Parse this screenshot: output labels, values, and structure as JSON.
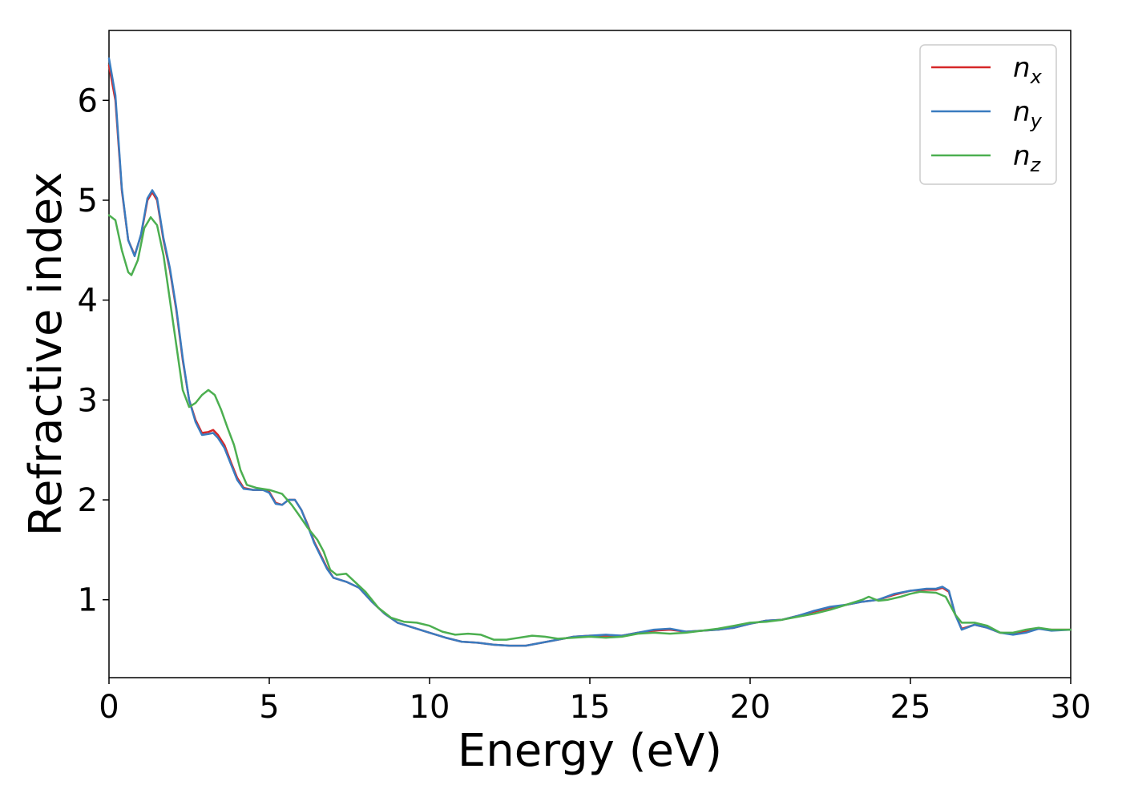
{
  "chart_data": {
    "type": "line",
    "title": "",
    "xlabel": "Energy (eV)",
    "ylabel": "Refractive index",
    "xlim": [
      0,
      30
    ],
    "ylim": [
      0.22,
      6.7
    ],
    "xticks": [
      0,
      5,
      10,
      15,
      20,
      25,
      30
    ],
    "xtick_labels": [
      "0",
      "5",
      "10",
      "15",
      "20",
      "25",
      "30"
    ],
    "yticks": [
      1,
      2,
      3,
      4,
      5,
      6
    ],
    "ytick_labels": [
      "1",
      "2",
      "3",
      "4",
      "5",
      "6"
    ],
    "grid": false,
    "legend_position": "top-right",
    "series": [
      {
        "name": "n",
        "subscript": "x",
        "color": "#d62728",
        "points": [
          [
            0,
            6.35
          ],
          [
            0.2,
            6.0
          ],
          [
            0.4,
            5.1
          ],
          [
            0.6,
            4.6
          ],
          [
            0.8,
            4.45
          ],
          [
            1.0,
            4.65
          ],
          [
            1.2,
            5.0
          ],
          [
            1.35,
            5.08
          ],
          [
            1.5,
            5.0
          ],
          [
            1.7,
            4.6
          ],
          [
            1.9,
            4.3
          ],
          [
            2.1,
            3.9
          ],
          [
            2.3,
            3.4
          ],
          [
            2.5,
            3.0
          ],
          [
            2.7,
            2.8
          ],
          [
            2.9,
            2.67
          ],
          [
            3.1,
            2.68
          ],
          [
            3.25,
            2.7
          ],
          [
            3.4,
            2.65
          ],
          [
            3.6,
            2.55
          ],
          [
            3.8,
            2.38
          ],
          [
            4.0,
            2.22
          ],
          [
            4.2,
            2.12
          ],
          [
            4.5,
            2.1
          ],
          [
            4.8,
            2.1
          ],
          [
            5.0,
            2.08
          ],
          [
            5.2,
            1.97
          ],
          [
            5.4,
            1.95
          ],
          [
            5.6,
            2.0
          ],
          [
            5.8,
            2.0
          ],
          [
            6.0,
            1.9
          ],
          [
            6.2,
            1.75
          ],
          [
            6.4,
            1.58
          ],
          [
            6.6,
            1.45
          ],
          [
            6.8,
            1.32
          ],
          [
            7.0,
            1.22
          ],
          [
            7.4,
            1.18
          ],
          [
            7.8,
            1.12
          ],
          [
            8.2,
            0.98
          ],
          [
            8.6,
            0.86
          ],
          [
            9.0,
            0.77
          ],
          [
            9.5,
            0.72
          ],
          [
            10.0,
            0.67
          ],
          [
            10.5,
            0.62
          ],
          [
            11.0,
            0.58
          ],
          [
            11.5,
            0.57
          ],
          [
            12.0,
            0.55
          ],
          [
            12.5,
            0.54
          ],
          [
            13.0,
            0.54
          ],
          [
            13.5,
            0.57
          ],
          [
            14.0,
            0.6
          ],
          [
            14.5,
            0.63
          ],
          [
            15.0,
            0.64
          ],
          [
            15.5,
            0.64
          ],
          [
            16.0,
            0.64
          ],
          [
            16.5,
            0.67
          ],
          [
            17.0,
            0.69
          ],
          [
            17.5,
            0.7
          ],
          [
            18.0,
            0.68
          ],
          [
            18.5,
            0.69
          ],
          [
            19.0,
            0.7
          ],
          [
            19.5,
            0.72
          ],
          [
            20.0,
            0.76
          ],
          [
            20.5,
            0.79
          ],
          [
            21.0,
            0.8
          ],
          [
            21.5,
            0.84
          ],
          [
            22.0,
            0.88
          ],
          [
            22.5,
            0.92
          ],
          [
            23.0,
            0.95
          ],
          [
            23.5,
            0.98
          ],
          [
            24.0,
            1.0
          ],
          [
            24.5,
            1.05
          ],
          [
            25.0,
            1.09
          ],
          [
            25.5,
            1.1
          ],
          [
            25.8,
            1.1
          ],
          [
            26.0,
            1.12
          ],
          [
            26.2,
            1.08
          ],
          [
            26.4,
            0.85
          ],
          [
            26.6,
            0.71
          ],
          [
            27.0,
            0.75
          ],
          [
            27.4,
            0.72
          ],
          [
            27.8,
            0.67
          ],
          [
            28.2,
            0.66
          ],
          [
            28.6,
            0.68
          ],
          [
            29.0,
            0.71
          ],
          [
            29.4,
            0.7
          ],
          [
            30.0,
            0.7
          ]
        ]
      },
      {
        "name": "n",
        "subscript": "y",
        "color": "#3a7bbf",
        "points": [
          [
            0,
            6.42
          ],
          [
            0.2,
            6.05
          ],
          [
            0.4,
            5.12
          ],
          [
            0.6,
            4.6
          ],
          [
            0.8,
            4.44
          ],
          [
            1.0,
            4.66
          ],
          [
            1.2,
            5.02
          ],
          [
            1.35,
            5.1
          ],
          [
            1.5,
            5.02
          ],
          [
            1.7,
            4.62
          ],
          [
            1.9,
            4.32
          ],
          [
            2.1,
            3.92
          ],
          [
            2.3,
            3.42
          ],
          [
            2.5,
            3.0
          ],
          [
            2.7,
            2.78
          ],
          [
            2.9,
            2.65
          ],
          [
            3.1,
            2.66
          ],
          [
            3.25,
            2.67
          ],
          [
            3.4,
            2.62
          ],
          [
            3.6,
            2.52
          ],
          [
            3.8,
            2.36
          ],
          [
            4.0,
            2.2
          ],
          [
            4.2,
            2.11
          ],
          [
            4.5,
            2.1
          ],
          [
            4.8,
            2.1
          ],
          [
            5.0,
            2.07
          ],
          [
            5.2,
            1.96
          ],
          [
            5.4,
            1.95
          ],
          [
            5.6,
            2.0
          ],
          [
            5.8,
            2.0
          ],
          [
            6.0,
            1.9
          ],
          [
            6.2,
            1.74
          ],
          [
            6.4,
            1.57
          ],
          [
            6.6,
            1.44
          ],
          [
            6.8,
            1.31
          ],
          [
            7.0,
            1.22
          ],
          [
            7.4,
            1.18
          ],
          [
            7.8,
            1.12
          ],
          [
            8.2,
            0.98
          ],
          [
            8.6,
            0.86
          ],
          [
            9.0,
            0.77
          ],
          [
            9.5,
            0.72
          ],
          [
            10.0,
            0.67
          ],
          [
            10.5,
            0.62
          ],
          [
            11.0,
            0.58
          ],
          [
            11.5,
            0.57
          ],
          [
            12.0,
            0.55
          ],
          [
            12.5,
            0.54
          ],
          [
            13.0,
            0.54
          ],
          [
            13.5,
            0.57
          ],
          [
            14.0,
            0.6
          ],
          [
            14.5,
            0.63
          ],
          [
            15.0,
            0.64
          ],
          [
            15.5,
            0.65
          ],
          [
            16.0,
            0.64
          ],
          [
            16.5,
            0.67
          ],
          [
            17.0,
            0.7
          ],
          [
            17.5,
            0.71
          ],
          [
            18.0,
            0.68
          ],
          [
            18.5,
            0.69
          ],
          [
            19.0,
            0.7
          ],
          [
            19.5,
            0.72
          ],
          [
            20.0,
            0.76
          ],
          [
            20.5,
            0.79
          ],
          [
            21.0,
            0.8
          ],
          [
            21.5,
            0.84
          ],
          [
            22.0,
            0.89
          ],
          [
            22.5,
            0.93
          ],
          [
            23.0,
            0.95
          ],
          [
            23.5,
            0.98
          ],
          [
            24.0,
            1.0
          ],
          [
            24.5,
            1.06
          ],
          [
            25.0,
            1.09
          ],
          [
            25.5,
            1.11
          ],
          [
            25.8,
            1.11
          ],
          [
            26.0,
            1.13
          ],
          [
            26.2,
            1.09
          ],
          [
            26.4,
            0.85
          ],
          [
            26.6,
            0.7
          ],
          [
            27.0,
            0.75
          ],
          [
            27.4,
            0.72
          ],
          [
            27.8,
            0.67
          ],
          [
            28.2,
            0.65
          ],
          [
            28.6,
            0.67
          ],
          [
            29.0,
            0.71
          ],
          [
            29.4,
            0.69
          ],
          [
            30.0,
            0.7
          ]
        ]
      },
      {
        "name": "n",
        "subscript": "z",
        "color": "#4caf50",
        "points": [
          [
            0,
            4.85
          ],
          [
            0.2,
            4.8
          ],
          [
            0.4,
            4.5
          ],
          [
            0.6,
            4.28
          ],
          [
            0.7,
            4.25
          ],
          [
            0.9,
            4.4
          ],
          [
            1.1,
            4.72
          ],
          [
            1.3,
            4.83
          ],
          [
            1.5,
            4.75
          ],
          [
            1.7,
            4.45
          ],
          [
            1.9,
            4.0
          ],
          [
            2.1,
            3.55
          ],
          [
            2.3,
            3.1
          ],
          [
            2.5,
            2.93
          ],
          [
            2.7,
            2.97
          ],
          [
            2.9,
            3.05
          ],
          [
            3.1,
            3.1
          ],
          [
            3.3,
            3.05
          ],
          [
            3.5,
            2.9
          ],
          [
            3.7,
            2.72
          ],
          [
            3.9,
            2.55
          ],
          [
            4.1,
            2.3
          ],
          [
            4.3,
            2.15
          ],
          [
            4.6,
            2.12
          ],
          [
            5.0,
            2.1
          ],
          [
            5.4,
            2.06
          ],
          [
            5.7,
            1.95
          ],
          [
            5.9,
            1.86
          ],
          [
            6.2,
            1.72
          ],
          [
            6.5,
            1.6
          ],
          [
            6.7,
            1.48
          ],
          [
            6.9,
            1.3
          ],
          [
            7.1,
            1.25
          ],
          [
            7.4,
            1.26
          ],
          [
            7.6,
            1.2
          ],
          [
            8.0,
            1.08
          ],
          [
            8.4,
            0.92
          ],
          [
            8.8,
            0.82
          ],
          [
            9.2,
            0.78
          ],
          [
            9.6,
            0.77
          ],
          [
            10.0,
            0.74
          ],
          [
            10.4,
            0.68
          ],
          [
            10.8,
            0.65
          ],
          [
            11.2,
            0.66
          ],
          [
            11.6,
            0.65
          ],
          [
            12.0,
            0.6
          ],
          [
            12.4,
            0.6
          ],
          [
            12.8,
            0.62
          ],
          [
            13.2,
            0.64
          ],
          [
            13.6,
            0.63
          ],
          [
            14.0,
            0.61
          ],
          [
            14.5,
            0.62
          ],
          [
            15.0,
            0.63
          ],
          [
            15.5,
            0.62
          ],
          [
            16.0,
            0.63
          ],
          [
            16.5,
            0.66
          ],
          [
            17.0,
            0.67
          ],
          [
            17.5,
            0.66
          ],
          [
            18.0,
            0.67
          ],
          [
            18.5,
            0.69
          ],
          [
            19.0,
            0.71
          ],
          [
            19.5,
            0.74
          ],
          [
            20.0,
            0.77
          ],
          [
            20.5,
            0.78
          ],
          [
            21.0,
            0.8
          ],
          [
            21.5,
            0.83
          ],
          [
            22.0,
            0.86
          ],
          [
            22.5,
            0.9
          ],
          [
            23.0,
            0.95
          ],
          [
            23.5,
            1.0
          ],
          [
            23.7,
            1.03
          ],
          [
            24.0,
            0.99
          ],
          [
            24.3,
            1.0
          ],
          [
            24.7,
            1.03
          ],
          [
            25.0,
            1.06
          ],
          [
            25.3,
            1.08
          ],
          [
            25.8,
            1.07
          ],
          [
            26.1,
            1.03
          ],
          [
            26.4,
            0.85
          ],
          [
            26.6,
            0.77
          ],
          [
            27.0,
            0.77
          ],
          [
            27.4,
            0.74
          ],
          [
            27.8,
            0.67
          ],
          [
            28.2,
            0.67
          ],
          [
            28.6,
            0.7
          ],
          [
            29.0,
            0.72
          ],
          [
            29.4,
            0.7
          ],
          [
            30.0,
            0.7
          ]
        ]
      }
    ]
  }
}
